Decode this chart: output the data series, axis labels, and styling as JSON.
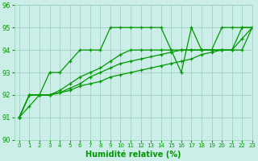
{
  "xlabel": "Humidité relative (%)",
  "bg_color": "#cceee8",
  "grid_color": "#99ccbb",
  "line_color": "#009900",
  "xlim": [
    -0.5,
    23
  ],
  "ylim": [
    90,
    96
  ],
  "yticks": [
    90,
    91,
    92,
    93,
    94,
    95,
    96
  ],
  "xticks": [
    0,
    1,
    2,
    3,
    4,
    5,
    6,
    7,
    8,
    9,
    10,
    11,
    12,
    13,
    14,
    15,
    16,
    17,
    18,
    19,
    20,
    21,
    22,
    23
  ],
  "series": [
    [
      91,
      92,
      92,
      93,
      93,
      93.5,
      94,
      94,
      94,
      95,
      95,
      95,
      95,
      95,
      95,
      94,
      93,
      95,
      94,
      94,
      95,
      95,
      95,
      95
    ],
    [
      91,
      92,
      92,
      92,
      92.2,
      92.5,
      92.8,
      93,
      93.2,
      93.5,
      93.8,
      94,
      94,
      94,
      94,
      94,
      94,
      94,
      94,
      94,
      94,
      94,
      95,
      95
    ],
    [
      91,
      92,
      92,
      92,
      92.1,
      92.3,
      92.5,
      92.8,
      93,
      93.2,
      93.4,
      93.5,
      93.6,
      93.7,
      93.8,
      93.9,
      94,
      94,
      94,
      94,
      94,
      94,
      94,
      95
    ],
    [
      91,
      91.5,
      92,
      92,
      92.1,
      92.2,
      92.4,
      92.5,
      92.6,
      92.8,
      92.9,
      93,
      93.1,
      93.2,
      93.3,
      93.4,
      93.5,
      93.6,
      93.8,
      93.9,
      94,
      94,
      94.5,
      95
    ]
  ]
}
